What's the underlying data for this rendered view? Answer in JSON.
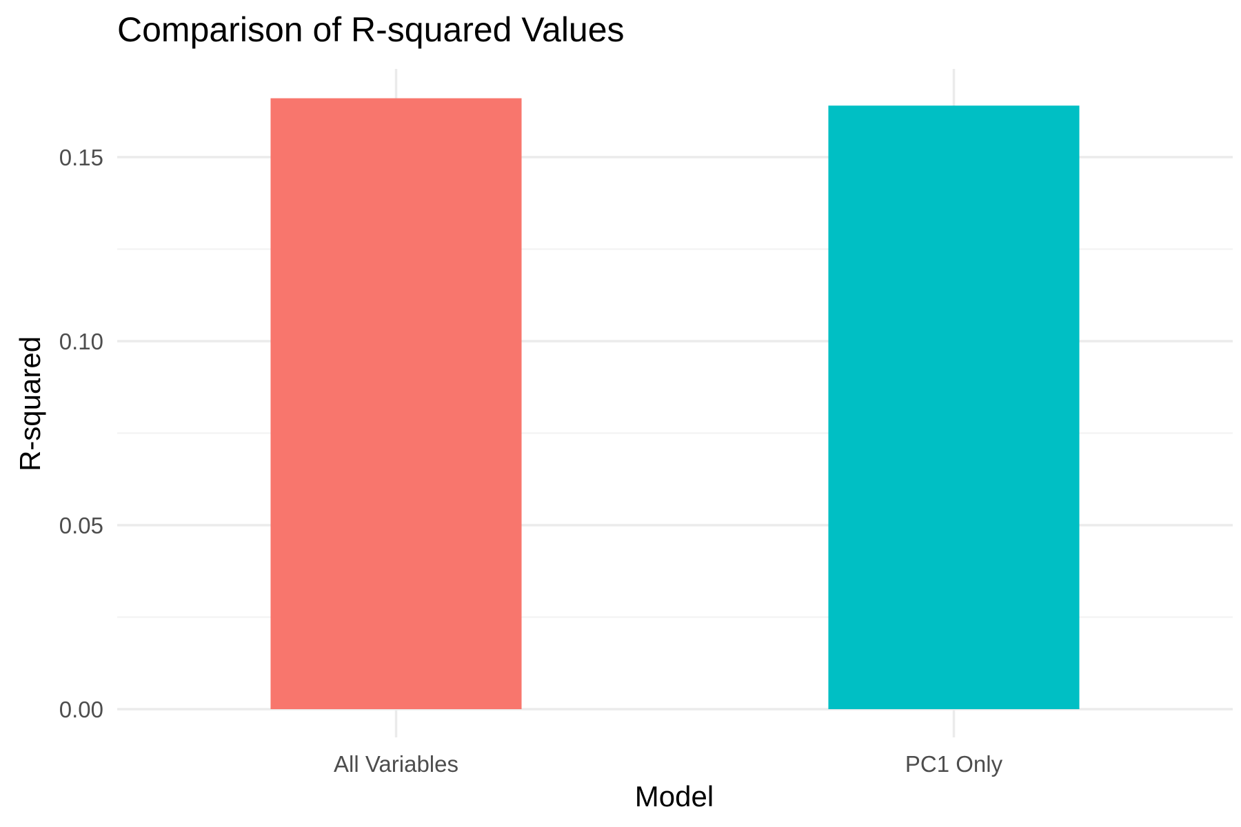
{
  "chart_data": {
    "type": "bar",
    "title": "Comparison of R-squared Values",
    "xlabel": "Model",
    "ylabel": "R-squared",
    "categories": [
      "All Variables",
      "PC1 Only"
    ],
    "values": [
      0.166,
      0.164
    ],
    "colors": [
      "#F8766D",
      "#00BFC4"
    ],
    "ylim": [
      0,
      0.1725
    ],
    "yticks": [
      0,
      0.05,
      0.1,
      0.15
    ],
    "ytick_labels": [
      "0.00",
      "0.05",
      "0.10",
      "0.15"
    ],
    "grid": true,
    "legend": "none"
  },
  "style": {
    "grid_major_color": "#ebebeb",
    "grid_minor_color": "#f2f2f2",
    "tick_label_color": "#4d4d4d",
    "background": "#ffffff"
  }
}
